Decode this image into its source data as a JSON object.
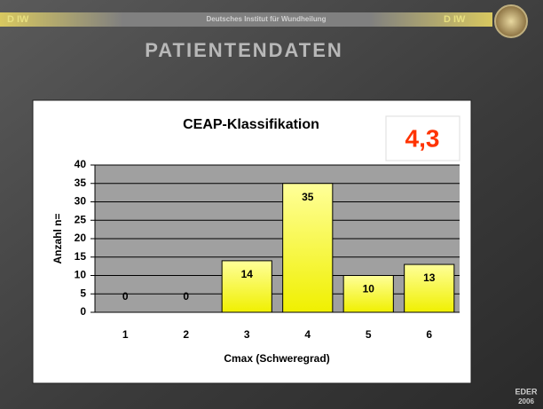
{
  "header": {
    "logo_text": "D IW",
    "institute": "Deutsches Institut für Wundheilung",
    "title": "PATIENTENDATEN"
  },
  "chart_data": {
    "type": "bar",
    "title": "CEAP-Klassifikation",
    "annotation": "4,3",
    "x_label": "Cmax (Schweregrad)",
    "y_label": "Anzahl n=",
    "categories": [
      "1",
      "2",
      "3",
      "4",
      "5",
      "6"
    ],
    "values": [
      0,
      0,
      14,
      35,
      10,
      13
    ],
    "color": "#ffff66",
    "ylim": [
      0,
      40
    ],
    "yticks": [
      0,
      5,
      10,
      15,
      20,
      25,
      30,
      35,
      40
    ],
    "grid": true
  },
  "footer": {
    "author": "EDER",
    "year": "2006"
  }
}
